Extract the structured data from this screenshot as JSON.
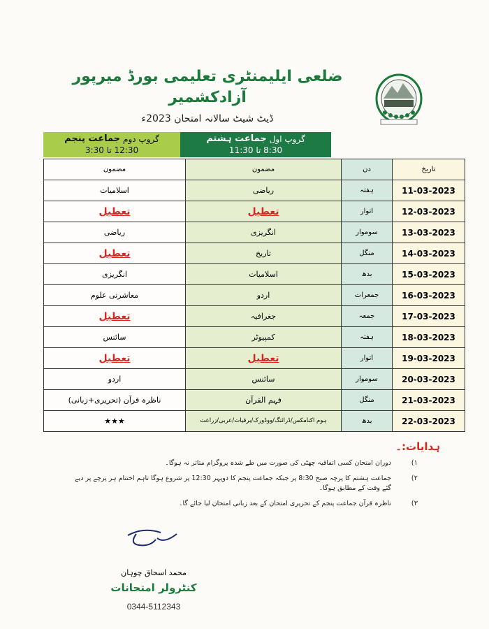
{
  "header": {
    "title": "ضلعی ایلیمنٹری تعلیمی بورڈ میرپور آزادکشمیر",
    "subtitle": "ڈیٹ شیٹ سالانہ امتحان 2023ء"
  },
  "groups": {
    "group1": {
      "prefix": "گروپ اول",
      "class": "جماعت ہشتم",
      "time": "8:30 تا 11:30"
    },
    "group2": {
      "prefix": "گروپ دوم",
      "class": "جماعت پنجم",
      "time": "12:30 تا 3:30"
    }
  },
  "table": {
    "headers": {
      "date": "تاریخ",
      "day": "دن",
      "subject1": "مضمون",
      "subject2": "مضمون"
    },
    "rows": [
      {
        "date": "11-03-2023",
        "day": "ہفتہ",
        "g1": "ریاضی",
        "g2": "اسلامیات"
      },
      {
        "date": "12-03-2023",
        "day": "اتوار",
        "g1": "تعطیل",
        "g2": "تعطیل",
        "holiday1": true,
        "holiday2": true
      },
      {
        "date": "13-03-2023",
        "day": "سوموار",
        "g1": "انگریزی",
        "g2": "ریاضی"
      },
      {
        "date": "14-03-2023",
        "day": "منگل",
        "g1": "تاریخ",
        "g2": "تعطیل",
        "holiday2": true
      },
      {
        "date": "15-03-2023",
        "day": "بدھ",
        "g1": "اسلامیات",
        "g2": "انگریزی"
      },
      {
        "date": "16-03-2023",
        "day": "جمعرات",
        "g1": "اردو",
        "g2": "معاشرتی علوم"
      },
      {
        "date": "17-03-2023",
        "day": "جمعہ",
        "g1": "جغرافیہ",
        "g2": "تعطیل",
        "holiday2": true
      },
      {
        "date": "18-03-2023",
        "day": "ہفتہ",
        "g1": "کمپیوٹر",
        "g2": "سائنس"
      },
      {
        "date": "19-03-2023",
        "day": "اتوار",
        "g1": "تعطیل",
        "g2": "تعطیل",
        "holiday1": true,
        "holiday2": true
      },
      {
        "date": "20-03-2023",
        "day": "سوموار",
        "g1": "سائنس",
        "g2": "اردو"
      },
      {
        "date": "21-03-2023",
        "day": "منگل",
        "g1": "فہم القرآن",
        "g2": "ناظرہ قرآن (تحریری+زبانی)"
      },
      {
        "date": "22-03-2023",
        "day": "بدھ",
        "g1": "ہوم اکنامکس/ڈرائنگ/ووڈورک/برقیات/عربی/زراعت",
        "g2": "★★★",
        "small1": true
      }
    ]
  },
  "instructions": {
    "heading": "ہدایات:۔",
    "items": [
      {
        "num": "۱)",
        "text": "دوران امتحان کسی اتفاقیہ چھٹی کی صورت میں طے شدہ پروگرام متاثر نہ ہوگا۔"
      },
      {
        "num": "۲)",
        "text": "جماعت ہشتم کا پرچہ صبح 8:30 پر جبکہ جماعت پنجم کا دوپہر 12:30 پر شروع ہوگا تاہم اختتام ہر پرچے پر دیے گئے وقت کے مطابق ہوگا۔"
      },
      {
        "num": "۳)",
        "text": "ناظرہ قرآن جماعت پنجم کے تحریری امتحان کے بعد زبانی امتحان لیا جائے گا۔"
      }
    ]
  },
  "signature": {
    "name": "محمد اسحاق چوہان",
    "designation": "کنٹرولر امتحانات",
    "phone": "0344-5112343"
  },
  "colors": {
    "green": "#1a7a3a",
    "lime": "#a9cc4a",
    "holiday": "#d8261f"
  }
}
